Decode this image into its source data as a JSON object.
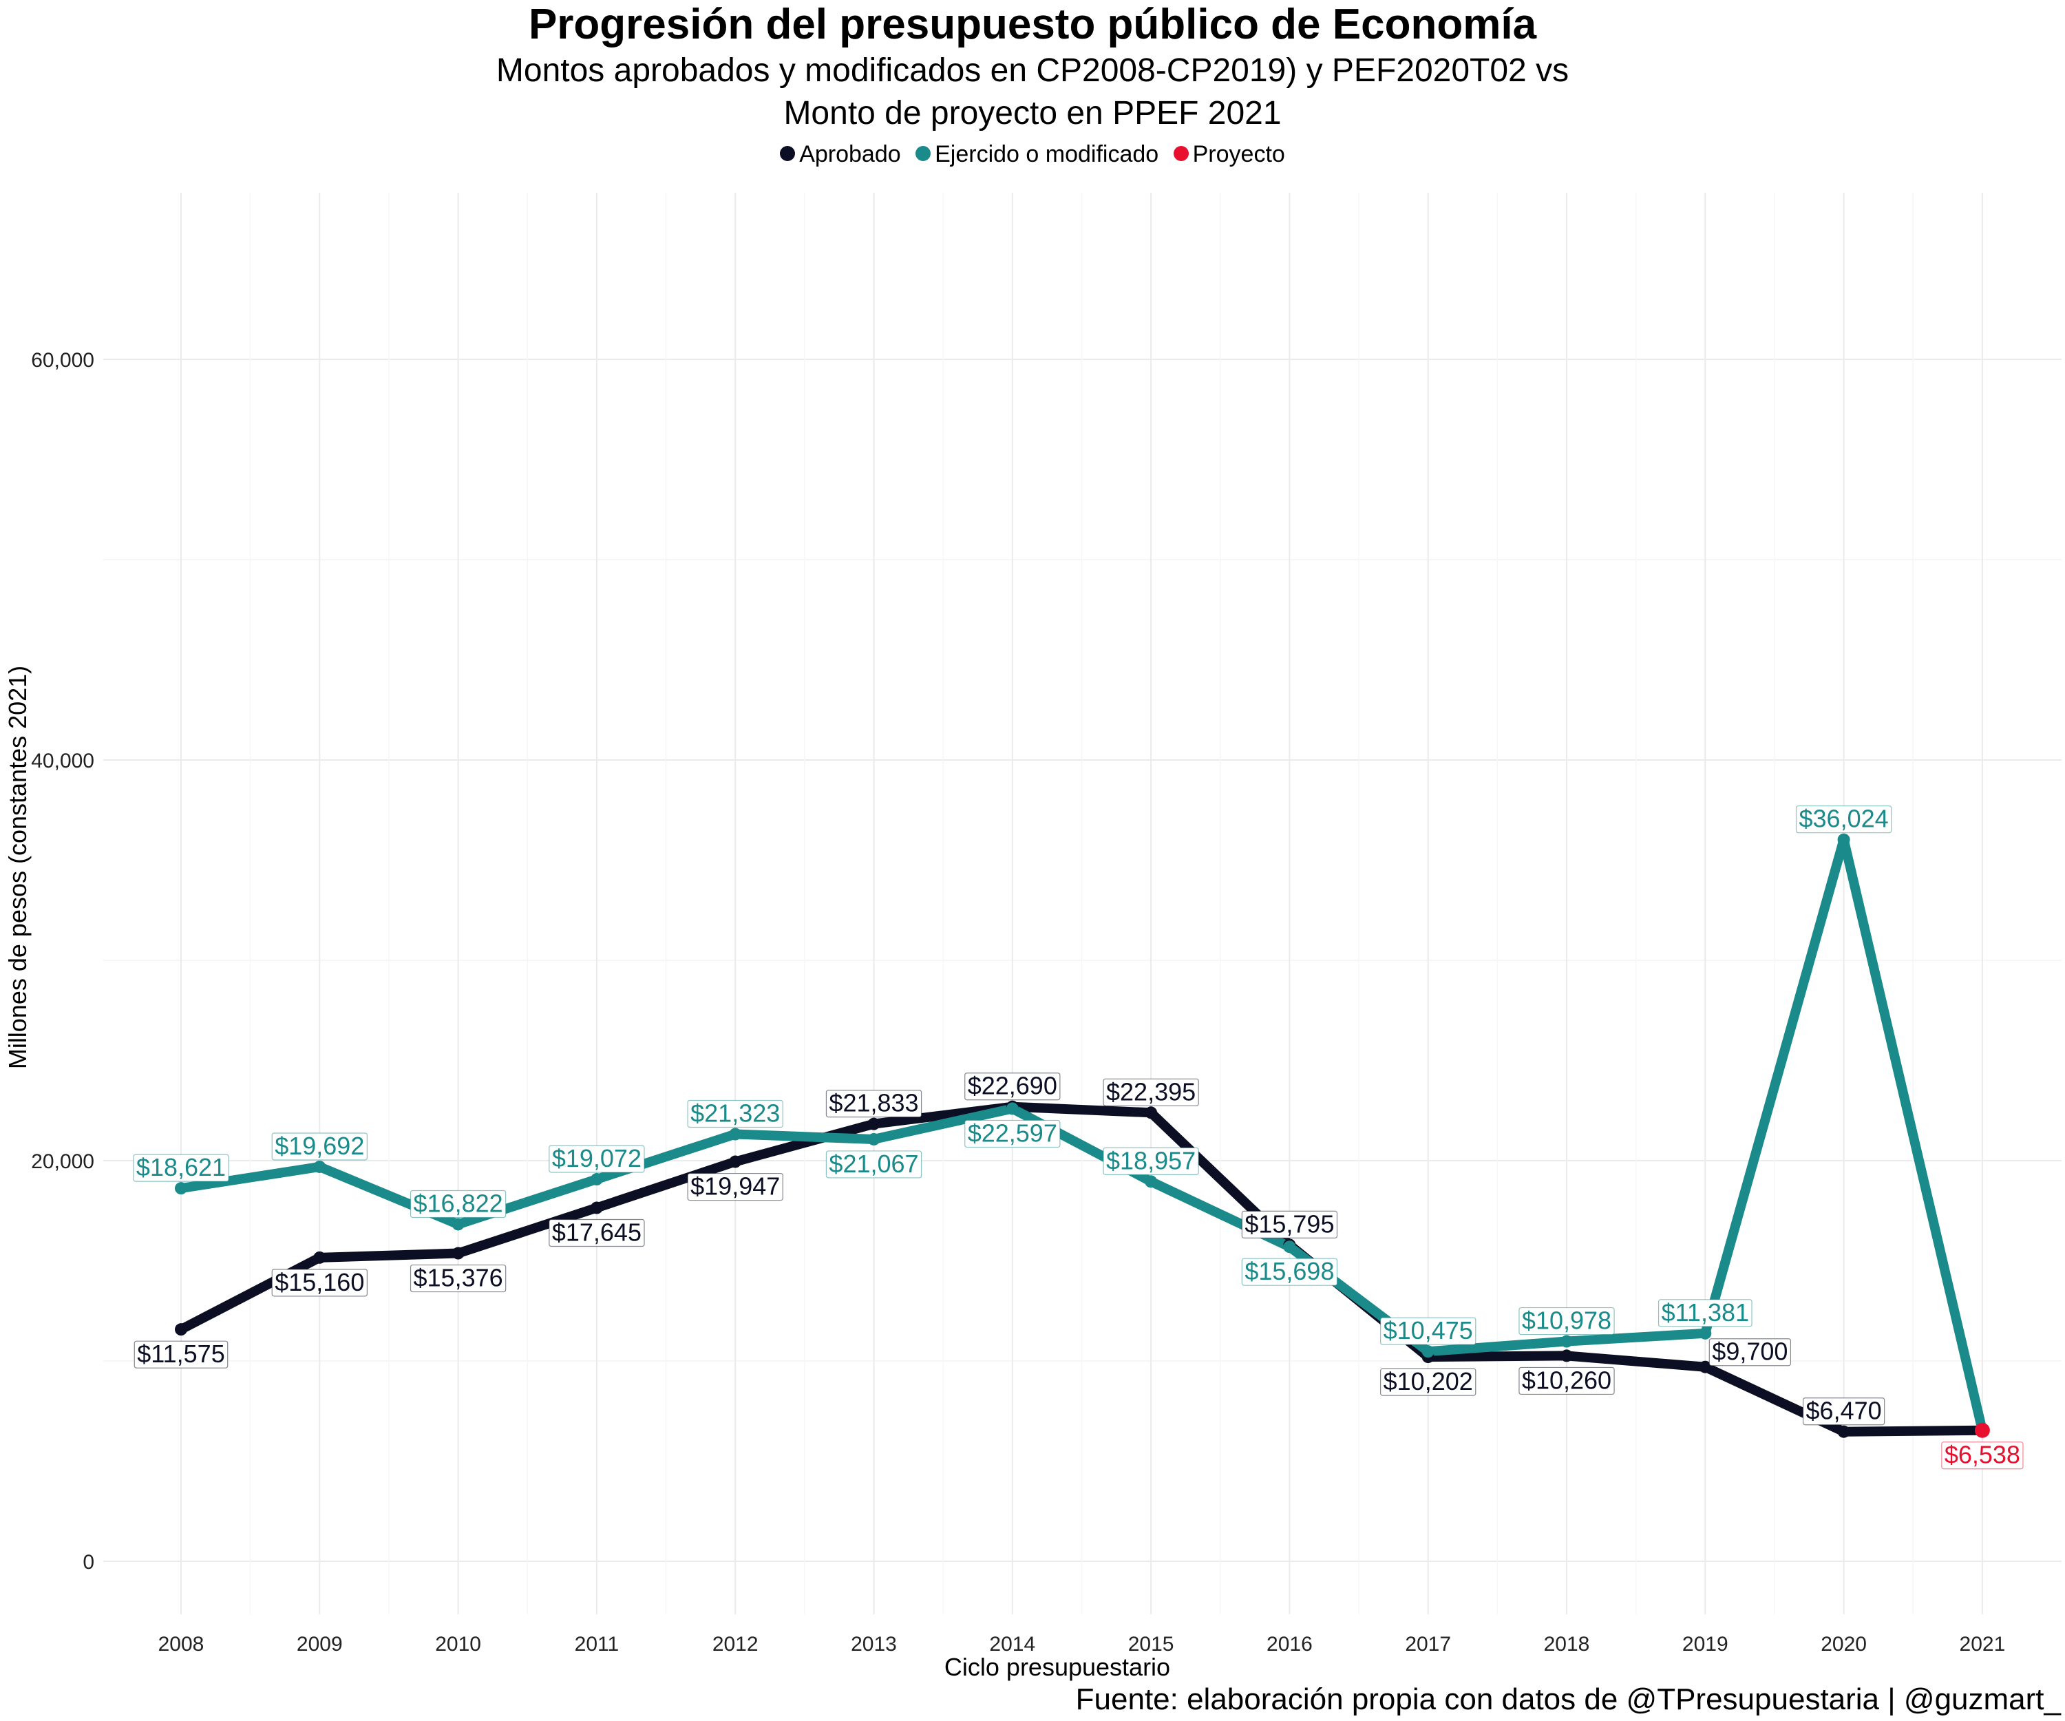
{
  "chart_data": {
    "type": "line",
    "title": "Progresión del presupuesto público de Economía",
    "subtitle_line1": "Montos aprobados y modificados en CP2008-CP2019) y PEF2020T02 vs",
    "subtitle_line2": "Monto de proyecto en PPEF 2021",
    "xlabel": "Ciclo presupuestario",
    "ylabel": "Millones de pesos (constantes 2021)",
    "caption": "Fuente: elaboración propia con datos de @TPresupuestaria | @guzmart_",
    "x": [
      "2008",
      "2009",
      "2010",
      "2011",
      "2012",
      "2013",
      "2014",
      "2015",
      "2016",
      "2017",
      "2018",
      "2019",
      "2020",
      "2021"
    ],
    "ylim": [
      0,
      60000
    ],
    "yticks": [
      0,
      20000,
      40000,
      60000
    ],
    "ytick_labels": [
      "0",
      "20,000",
      "40,000",
      "60,000"
    ],
    "legend_position": "top",
    "grid": true,
    "legend": [
      {
        "name": "Aprobado",
        "color": "#0c0f24"
      },
      {
        "name": "Ejercido o modificado",
        "color": "#1a8a8a"
      },
      {
        "name": "Proyecto",
        "color": "#e8102e"
      }
    ],
    "series": [
      {
        "name": "Aprobado",
        "color": "#0c0f24",
        "points": [
          {
            "x": "2008",
            "y": 11575,
            "label": "$11,575",
            "pos": "below"
          },
          {
            "x": "2009",
            "y": 15160,
            "label": "$15,160",
            "pos": "below"
          },
          {
            "x": "2010",
            "y": 15376,
            "label": "$15,376",
            "pos": "below"
          },
          {
            "x": "2011",
            "y": 17645,
            "label": "$17,645",
            "pos": "below"
          },
          {
            "x": "2012",
            "y": 19947,
            "label": "$19,947",
            "pos": "below"
          },
          {
            "x": "2013",
            "y": 21833,
            "label": "$21,833",
            "pos": "above"
          },
          {
            "x": "2014",
            "y": 22690,
            "label": "$22,690",
            "pos": "above"
          },
          {
            "x": "2015",
            "y": 22395,
            "label": "$22,395",
            "pos": "above"
          },
          {
            "x": "2016",
            "y": 15795,
            "label": "$15,795",
            "pos": "above"
          },
          {
            "x": "2017",
            "y": 10202,
            "label": "$10,202",
            "pos": "below"
          },
          {
            "x": "2018",
            "y": 10260,
            "label": "$10,260",
            "pos": "below"
          },
          {
            "x": "2019",
            "y": 9700,
            "label": "$9,700",
            "pos": "above-right"
          },
          {
            "x": "2020",
            "y": 6470,
            "label": "$6,470",
            "pos": "above"
          },
          {
            "x": "2021",
            "y": 6538,
            "label": "",
            "pos": "none"
          }
        ]
      },
      {
        "name": "Ejercido o modificado",
        "color": "#1a8a8a",
        "points": [
          {
            "x": "2008",
            "y": 18621,
            "label": "$18,621",
            "pos": "above"
          },
          {
            "x": "2009",
            "y": 19692,
            "label": "$19,692",
            "pos": "above"
          },
          {
            "x": "2010",
            "y": 16822,
            "label": "$16,822",
            "pos": "above"
          },
          {
            "x": "2011",
            "y": 19072,
            "label": "$19,072",
            "pos": "above"
          },
          {
            "x": "2012",
            "y": 21323,
            "label": "$21,323",
            "pos": "above"
          },
          {
            "x": "2013",
            "y": 21067,
            "label": "$21,067",
            "pos": "below"
          },
          {
            "x": "2014",
            "y": 22597,
            "label": "$22,597",
            "pos": "below"
          },
          {
            "x": "2015",
            "y": 18957,
            "label": "$18,957",
            "pos": "above"
          },
          {
            "x": "2016",
            "y": 15698,
            "label": "$15,698",
            "pos": "below"
          },
          {
            "x": "2017",
            "y": 10475,
            "label": "$10,475",
            "pos": "above"
          },
          {
            "x": "2018",
            "y": 10978,
            "label": "$10,978",
            "pos": "above"
          },
          {
            "x": "2019",
            "y": 11381,
            "label": "$11,381",
            "pos": "above"
          },
          {
            "x": "2020",
            "y": 36024,
            "label": "$36,024",
            "pos": "above"
          },
          {
            "x": "2021",
            "y": 6538,
            "label": "",
            "pos": "none"
          }
        ]
      },
      {
        "name": "Proyecto",
        "color": "#e8102e",
        "points": [
          {
            "x": "2021",
            "y": 6538,
            "label": "$6,538",
            "pos": "below"
          }
        ]
      }
    ]
  }
}
